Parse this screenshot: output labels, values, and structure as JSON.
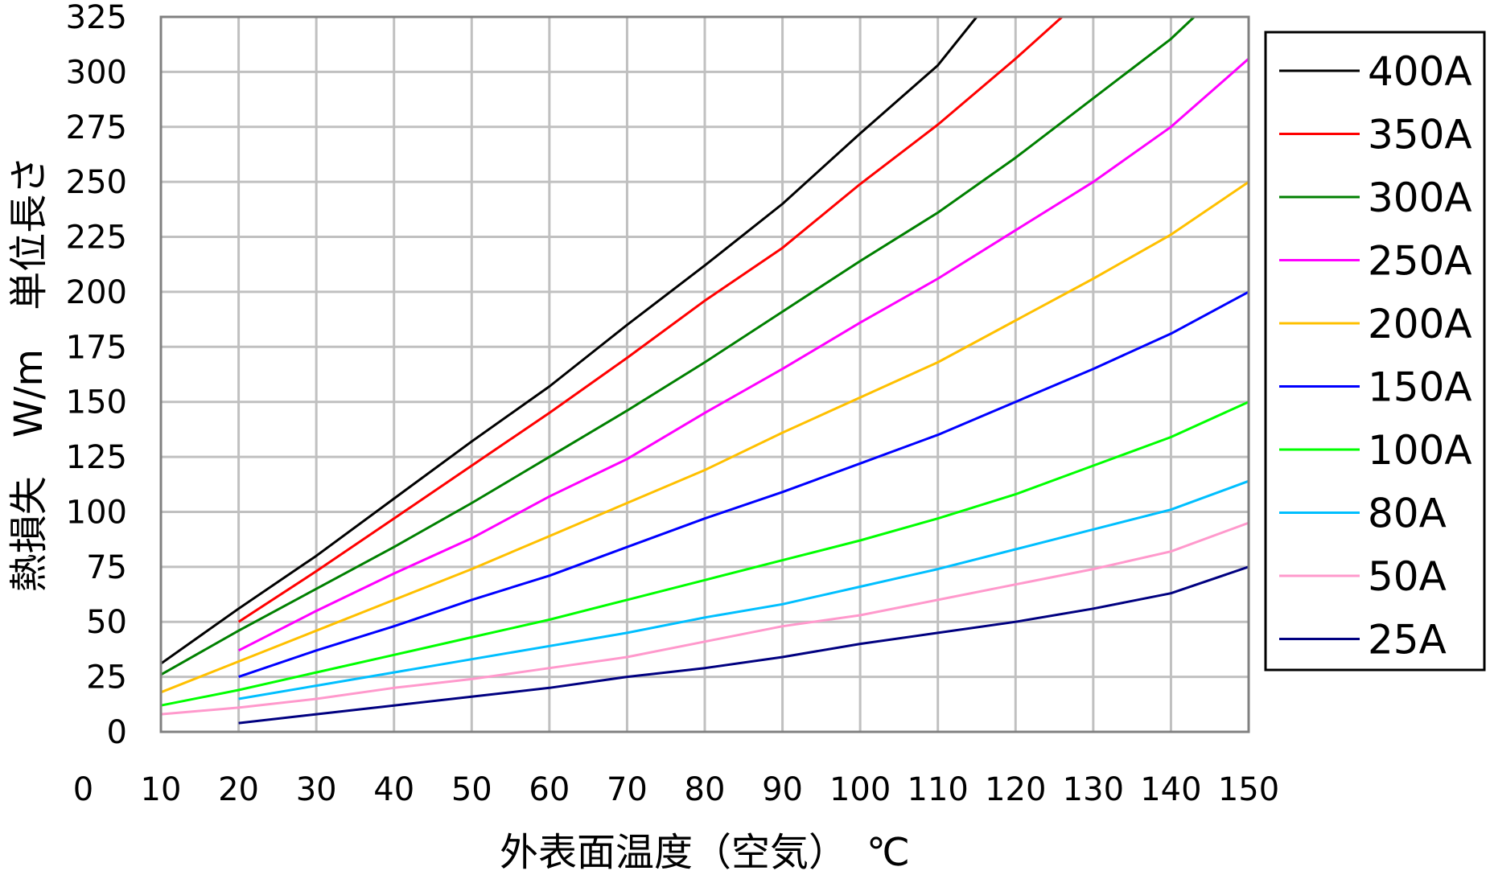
{
  "chart_data": {
    "type": "line",
    "xlabel": "外表面温度（空気）　℃",
    "ylabel": "熱損失　W/m　単位長さ",
    "xlim": [
      0,
      150
    ],
    "ylim": [
      0,
      325
    ],
    "x_ticks": [
      "0",
      "10",
      "20",
      "30",
      "40",
      "50",
      "60",
      "70",
      "80",
      "90",
      "100",
      "110",
      "120",
      "130",
      "140",
      "150"
    ],
    "y_ticks": [
      "0",
      "25",
      "50",
      "75",
      "100",
      "125",
      "150",
      "175",
      "200",
      "225",
      "250",
      "275",
      "300",
      "325"
    ],
    "grid": true,
    "legend_position": "right",
    "series": [
      {
        "name": "400A",
        "color": "#000000",
        "points": [
          [
            10,
            31
          ],
          [
            20,
            56
          ],
          [
            30,
            80
          ],
          [
            40,
            106
          ],
          [
            50,
            132
          ],
          [
            60,
            157
          ],
          [
            70,
            185
          ],
          [
            80,
            212
          ],
          [
            90,
            240
          ],
          [
            100,
            272
          ],
          [
            110,
            303
          ],
          [
            115,
            325
          ]
        ]
      },
      {
        "name": "350A",
        "color": "#ff0000",
        "points": [
          [
            20,
            50
          ],
          [
            30,
            73
          ],
          [
            40,
            97
          ],
          [
            50,
            121
          ],
          [
            60,
            145
          ],
          [
            70,
            170
          ],
          [
            80,
            196
          ],
          [
            90,
            220
          ],
          [
            100,
            249
          ],
          [
            110,
            276
          ],
          [
            120,
            306
          ],
          [
            126,
            325
          ]
        ]
      },
      {
        "name": "300A",
        "color": "#008000",
        "points": [
          [
            10,
            26
          ],
          [
            20,
            46
          ],
          [
            30,
            65
          ],
          [
            40,
            84
          ],
          [
            50,
            104
          ],
          [
            60,
            125
          ],
          [
            70,
            146
          ],
          [
            80,
            168
          ],
          [
            90,
            191
          ],
          [
            100,
            214
          ],
          [
            110,
            236
          ],
          [
            120,
            261
          ],
          [
            130,
            288
          ],
          [
            140,
            315
          ],
          [
            143,
            325
          ]
        ]
      },
      {
        "name": "250A",
        "color": "#ff00ff",
        "points": [
          [
            20,
            37
          ],
          [
            30,
            55
          ],
          [
            40,
            72
          ],
          [
            50,
            88
          ],
          [
            60,
            107
          ],
          [
            70,
            124
          ],
          [
            80,
            145
          ],
          [
            90,
            165
          ],
          [
            100,
            186
          ],
          [
            110,
            206
          ],
          [
            120,
            228
          ],
          [
            130,
            250
          ],
          [
            140,
            275
          ],
          [
            150,
            306
          ]
        ]
      },
      {
        "name": "200A",
        "color": "#ffc000",
        "points": [
          [
            10,
            18
          ],
          [
            20,
            32
          ],
          [
            30,
            46
          ],
          [
            40,
            60
          ],
          [
            50,
            74
          ],
          [
            60,
            89
          ],
          [
            70,
            104
          ],
          [
            80,
            119
          ],
          [
            90,
            136
          ],
          [
            100,
            152
          ],
          [
            110,
            168
          ],
          [
            120,
            187
          ],
          [
            130,
            206
          ],
          [
            140,
            226
          ],
          [
            150,
            250
          ]
        ]
      },
      {
        "name": "150A",
        "color": "#0000ff",
        "points": [
          [
            20,
            25
          ],
          [
            30,
            37
          ],
          [
            40,
            48
          ],
          [
            50,
            60
          ],
          [
            60,
            71
          ],
          [
            70,
            84
          ],
          [
            80,
            97
          ],
          [
            90,
            109
          ],
          [
            100,
            122
          ],
          [
            110,
            135
          ],
          [
            120,
            150
          ],
          [
            130,
            165
          ],
          [
            140,
            181
          ],
          [
            150,
            200
          ]
        ]
      },
      {
        "name": "100A",
        "color": "#00ff00",
        "points": [
          [
            10,
            12
          ],
          [
            20,
            19
          ],
          [
            30,
            27
          ],
          [
            40,
            35
          ],
          [
            50,
            43
          ],
          [
            60,
            51
          ],
          [
            70,
            60
          ],
          [
            80,
            69
          ],
          [
            90,
            78
          ],
          [
            100,
            87
          ],
          [
            110,
            97
          ],
          [
            120,
            108
          ],
          [
            130,
            121
          ],
          [
            140,
            134
          ],
          [
            150,
            150
          ]
        ]
      },
      {
        "name": "80A",
        "color": "#00bfff",
        "points": [
          [
            20,
            15
          ],
          [
            30,
            21
          ],
          [
            40,
            27
          ],
          [
            50,
            33
          ],
          [
            60,
            39
          ],
          [
            70,
            45
          ],
          [
            80,
            52
          ],
          [
            90,
            58
          ],
          [
            100,
            66
          ],
          [
            110,
            74
          ],
          [
            120,
            83
          ],
          [
            130,
            92
          ],
          [
            140,
            101
          ],
          [
            150,
            114
          ]
        ]
      },
      {
        "name": "50A",
        "color": "#ff99cc",
        "points": [
          [
            10,
            8
          ],
          [
            20,
            11
          ],
          [
            30,
            15
          ],
          [
            40,
            20
          ],
          [
            50,
            24
          ],
          [
            60,
            29
          ],
          [
            70,
            34
          ],
          [
            80,
            41
          ],
          [
            90,
            48
          ],
          [
            100,
            53
          ],
          [
            110,
            60
          ],
          [
            120,
            67
          ],
          [
            130,
            74
          ],
          [
            140,
            82
          ],
          [
            150,
            95
          ]
        ]
      },
      {
        "name": "25A",
        "color": "#000080",
        "points": [
          [
            20,
            4
          ],
          [
            30,
            8
          ],
          [
            40,
            12
          ],
          [
            50,
            16
          ],
          [
            60,
            20
          ],
          [
            70,
            25
          ],
          [
            80,
            29
          ],
          [
            90,
            34
          ],
          [
            100,
            40
          ],
          [
            110,
            45
          ],
          [
            120,
            50
          ],
          [
            130,
            56
          ],
          [
            140,
            63
          ],
          [
            150,
            75
          ]
        ]
      }
    ]
  }
}
